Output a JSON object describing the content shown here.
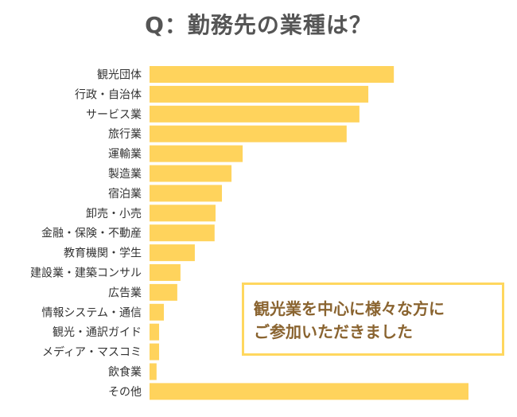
{
  "chart_data": {
    "type": "bar",
    "orientation": "horizontal",
    "title": "Q：勤務先の業種は？",
    "categories": [
      "観光団体",
      "行政・自治体",
      "サービス業",
      "旅行業",
      "運輸業",
      "製造業",
      "宿泊業",
      "卸売・小売",
      "金融・保険・不動産",
      "教育機関・学生",
      "建設業・建築コンサル",
      "広告業",
      "情報システム・通信",
      "観光・通訳ガイド",
      "メディア・マスコミ",
      "飲食業",
      "その他"
    ],
    "values": [
      76.6,
      68.6,
      65.8,
      61.8,
      29.2,
      25.7,
      22.7,
      20.7,
      20.4,
      14.2,
      9.7,
      8.7,
      4.5,
      3.0,
      3.0,
      2.2,
      100
    ],
    "value_note_visible": false,
    "xlabel": "",
    "ylabel": "",
    "xlim": [
      0,
      100
    ],
    "grid": false,
    "bar_color": "#ffd35c",
    "annotation": {
      "lines": [
        "観光業を中心に様々な方に",
        "ご参加いただきました"
      ],
      "border_color": "#ffd75e",
      "text_color": "#8a6430"
    }
  }
}
